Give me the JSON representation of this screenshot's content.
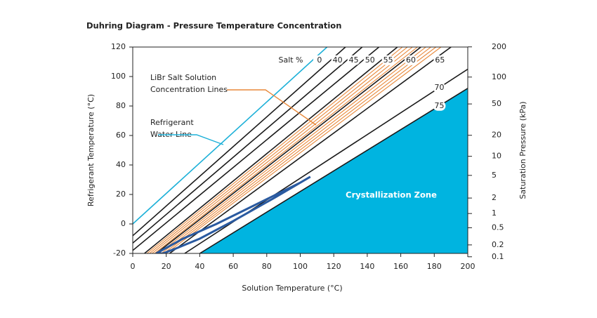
{
  "chart_data": {
    "type": "line",
    "title": "Duhring Diagram - Pressure Temperature Concentration",
    "x_label": "Solution Temperature (°C)",
    "y_label": "Refrigerant Temperature (°C)",
    "y2_label": "Saturation Pressure (kPa)",
    "xlim": [
      0,
      200
    ],
    "xticks": [
      0,
      20,
      40,
      60,
      80,
      100,
      120,
      140,
      160,
      180,
      200
    ],
    "ylim": [
      -20,
      120
    ],
    "yticks": [
      -20,
      0,
      20,
      40,
      60,
      80,
      100,
      120
    ],
    "y2lim": [
      0.1,
      200
    ],
    "y2scale": "water-saturation",
    "y2ticks": [
      0.1,
      0.2,
      0.5,
      1,
      2,
      5,
      10,
      20,
      50,
      100,
      200
    ],
    "series_title": "Salt %",
    "series": [
      {
        "name": "0",
        "color": "#1cb0d8",
        "x": [
          0,
          116
        ],
        "y": [
          0,
          120
        ]
      },
      {
        "name": "40",
        "color": "#1a1a1a",
        "x": [
          0,
          127
        ],
        "y": [
          -8,
          120
        ]
      },
      {
        "name": "45",
        "color": "#1a1a1a",
        "x": [
          0,
          137
        ],
        "y": [
          -13,
          120
        ]
      },
      {
        "name": "50",
        "color": "#1a1a1a",
        "x": [
          0,
          147
        ],
        "y": [
          -18,
          120
        ]
      },
      {
        "name": "55",
        "color": "#1a1a1a",
        "x": [
          7,
          158
        ],
        "y": [
          -20,
          120
        ]
      },
      {
        "color": "#e8883a",
        "x": [
          8.5,
          161
        ],
        "y": [
          -20,
          120
        ]
      },
      {
        "color": "#e8883a",
        "x": [
          10,
          164
        ],
        "y": [
          -20,
          120
        ]
      },
      {
        "color": "#e8883a",
        "x": [
          11.5,
          167
        ],
        "y": [
          -20,
          120
        ]
      },
      {
        "color": "#e8883a",
        "x": [
          13,
          170
        ],
        "y": [
          -20,
          120
        ]
      },
      {
        "name": "60",
        "color": "#1a1a1a",
        "x": [
          14,
          172
        ],
        "y": [
          -20,
          120
        ]
      },
      {
        "color": "#e8883a",
        "x": [
          15.5,
          175
        ],
        "y": [
          -20,
          120
        ]
      },
      {
        "color": "#e8883a",
        "x": [
          17,
          178
        ],
        "y": [
          -20,
          120
        ]
      },
      {
        "color": "#e8883a",
        "x": [
          18.5,
          181
        ],
        "y": [
          -20,
          120
        ]
      },
      {
        "color": "#e8883a",
        "x": [
          20,
          184
        ],
        "y": [
          -20,
          120
        ]
      },
      {
        "name": "65",
        "color": "#1a1a1a",
        "x": [
          22,
          190
        ],
        "y": [
          -20,
          120
        ]
      },
      {
        "name": "70",
        "color": "#1a1a1a",
        "x": [
          31,
          200
        ],
        "y": [
          -20,
          105
        ]
      },
      {
        "name": "75",
        "color": "#1a1a1a",
        "x": [
          40,
          200
        ],
        "y": [
          -20,
          92
        ]
      },
      {
        "color": "#2a5aa0",
        "x": [
          14,
          30,
          50,
          75,
          100,
          106,
          85,
          60,
          40,
          25,
          18
        ],
        "y": [
          -20,
          -10,
          0,
          14,
          28,
          32,
          18,
          2,
          -10,
          -17,
          -20
        ]
      }
    ],
    "crystallization_zone": {
      "label": "Crystallization Zone",
      "color": "#00b4e0",
      "x": [
        40,
        200,
        200
      ],
      "y": [
        -20,
        92,
        -20
      ]
    },
    "annotations": [
      {
        "lines": [
          "LiBr Salt Solution",
          "Concentration Lines"
        ],
        "color": "#e8883a"
      },
      {
        "lines": [
          "Refrigerant",
          "Water Line"
        ],
        "color": "#1cb0d8"
      }
    ]
  }
}
